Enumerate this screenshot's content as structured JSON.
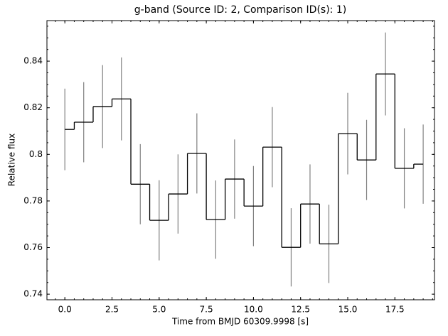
{
  "chart_data": {
    "type": "step",
    "title": "g-band (Source ID: 2, Comparison ID(s): 1)",
    "xlabel": "Time from BMJD 60309.9998 [s]",
    "ylabel": "Relative flux",
    "x": [
      0,
      1,
      2,
      3,
      4,
      5,
      6,
      7,
      8,
      9,
      10,
      11,
      12,
      13,
      14,
      15,
      16,
      17,
      18,
      19
    ],
    "series": [
      {
        "color": "#000000",
        "error_color": "#808080",
        "values": [
          0.8107,
          0.8138,
          0.8205,
          0.8238,
          0.7872,
          0.7717,
          0.783,
          0.8004,
          0.772,
          0.7894,
          0.7778,
          0.8031,
          0.7601,
          0.7787,
          0.7616,
          0.8089,
          0.7976,
          0.8345,
          0.794,
          0.7958
        ],
        "errors": [
          0.0175,
          0.0172,
          0.0178,
          0.0178,
          0.0172,
          0.0172,
          0.017,
          0.0172,
          0.0168,
          0.017,
          0.0172,
          0.0172,
          0.0168,
          0.017,
          0.0168,
          0.0175,
          0.0172,
          0.0178,
          0.0172,
          0.017
        ]
      }
    ],
    "xlim": [
      -0.95,
      19.6
    ],
    "ylim": [
      0.7376,
      0.8574
    ],
    "xticks": [
      {
        "value": 0,
        "label": "0.0"
      },
      {
        "value": 2.5,
        "label": "2.5"
      },
      {
        "value": 5,
        "label": "5.0"
      },
      {
        "value": 7.5,
        "label": "7.5"
      },
      {
        "value": 10,
        "label": "10.0"
      },
      {
        "value": 12.5,
        "label": "12.5"
      },
      {
        "value": 15,
        "label": "15.0"
      },
      {
        "value": 17.5,
        "label": "17.5"
      }
    ],
    "yticks": [
      0.74,
      0.76,
      0.78,
      0.8,
      0.82,
      0.84
    ]
  }
}
